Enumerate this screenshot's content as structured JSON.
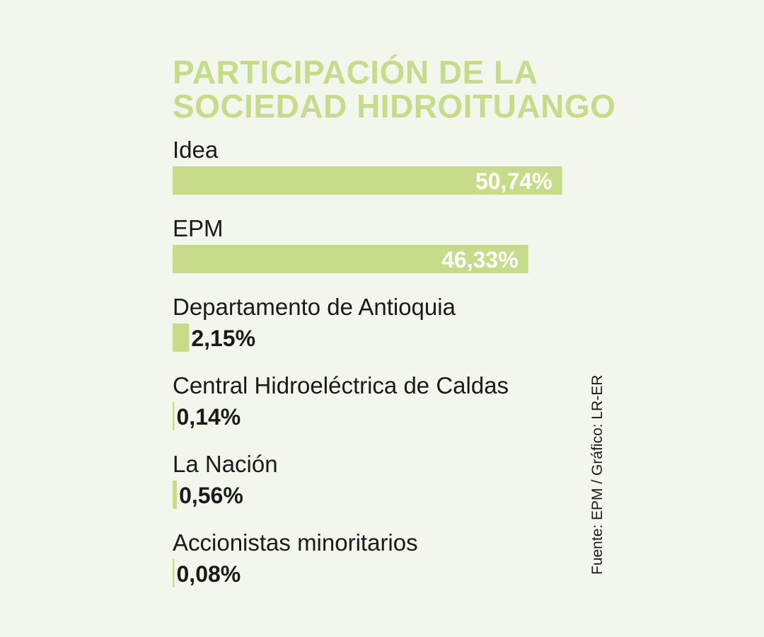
{
  "chart_data": {
    "type": "bar",
    "orientation": "horizontal",
    "title": [
      "PARTICIPACIÓN DE LA",
      "SOCIEDAD HIDROITUANGO"
    ],
    "categories": [
      "Idea",
      "EPM",
      "Departamento de Antioquia",
      "Central Hidroeléctrica de Caldas",
      "La Nación",
      "Accionistas minoritarios"
    ],
    "values": [
      50.74,
      46.33,
      2.15,
      0.14,
      0.56,
      0.08
    ],
    "value_labels": [
      "50,74%",
      "46,33%",
      "2,15%",
      "0,14%",
      "0,56%",
      "0,08%"
    ],
    "source": "Fuente: EPM / Gráfico: LR-ER",
    "grid": false,
    "legend": "none"
  },
  "colors": {
    "background": "#f2f6ec",
    "bar": "#c7dc8a",
    "title": "#c7dc8a",
    "text": "#1a1a1a",
    "label_inside": "#ffffff"
  }
}
